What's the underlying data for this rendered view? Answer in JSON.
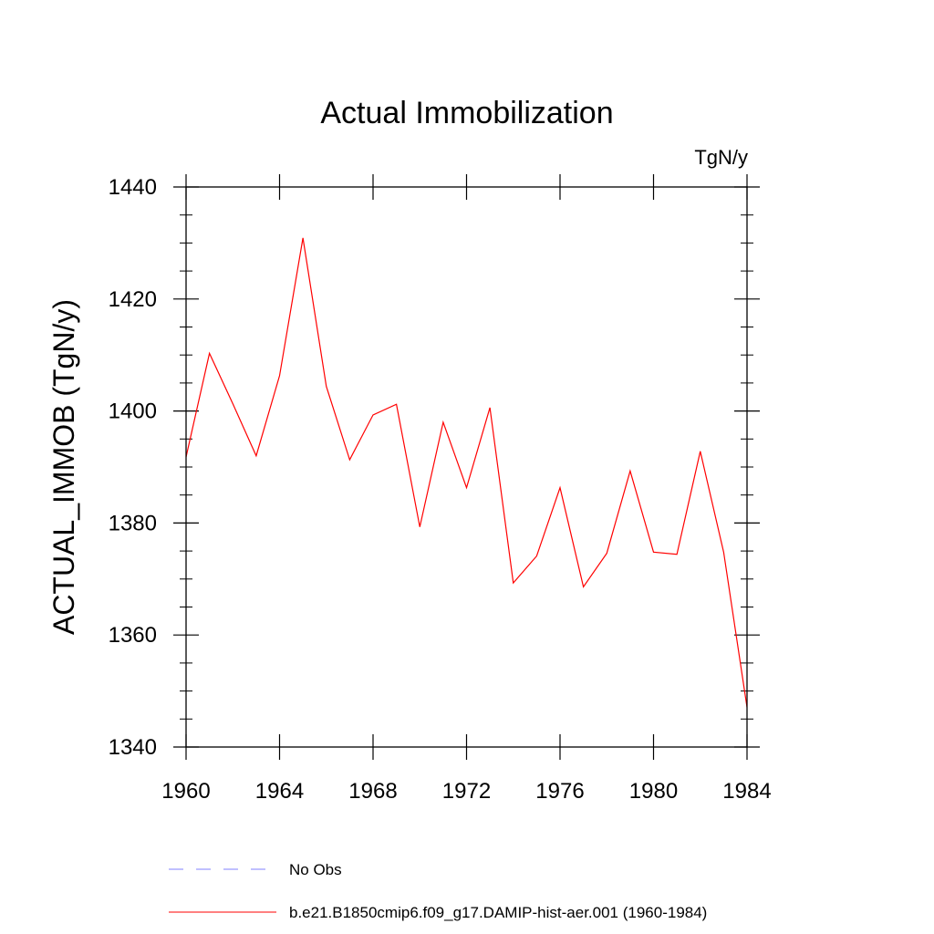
{
  "chart_data": {
    "type": "line",
    "title": "Actual Immobilization",
    "units_label": "TgN/y",
    "ylabel": "ACTUAL_IMMOB  (TgN/y)",
    "xlabel": "",
    "xlim": [
      1960,
      1984
    ],
    "ylim": [
      1340,
      1440
    ],
    "x_ticks": [
      "1960",
      "1964",
      "1968",
      "1972",
      "1976",
      "1980",
      "1984"
    ],
    "y_ticks": [
      "1340",
      "1360",
      "1380",
      "1400",
      "1420",
      "1440"
    ],
    "x": [
      1960,
      1961,
      1962,
      1963,
      1964,
      1965,
      1966,
      1967,
      1968,
      1969,
      1970,
      1971,
      1972,
      1973,
      1974,
      1975,
      1976,
      1977,
      1978,
      1979,
      1980,
      1981,
      1982,
      1983,
      1984
    ],
    "series": [
      {
        "name": "b.e21.B1850cmip6.f09_g17.DAMIP-hist-aer.001 (1960-1984)",
        "color": "#ff0000",
        "values": [
          1391.8,
          1410.3,
          1401.3,
          1392.0,
          1406.3,
          1430.9,
          1404.4,
          1391.3,
          1399.3,
          1401.2,
          1379.3,
          1398.0,
          1386.3,
          1400.6,
          1369.3,
          1374.1,
          1386.3,
          1368.6,
          1374.6,
          1389.3,
          1374.8,
          1374.4,
          1392.8,
          1374.8,
          1347.1
        ]
      }
    ],
    "legend": [
      {
        "label": "No Obs",
        "color": "#8080ff",
        "style": "dashed"
      },
      {
        "label": "b.e21.B1850cmip6.f09_g17.DAMIP-hist-aer.001 (1960-1984)",
        "color": "#ff0000",
        "style": "solid"
      }
    ],
    "grid": false,
    "legend_position": "bottom"
  }
}
